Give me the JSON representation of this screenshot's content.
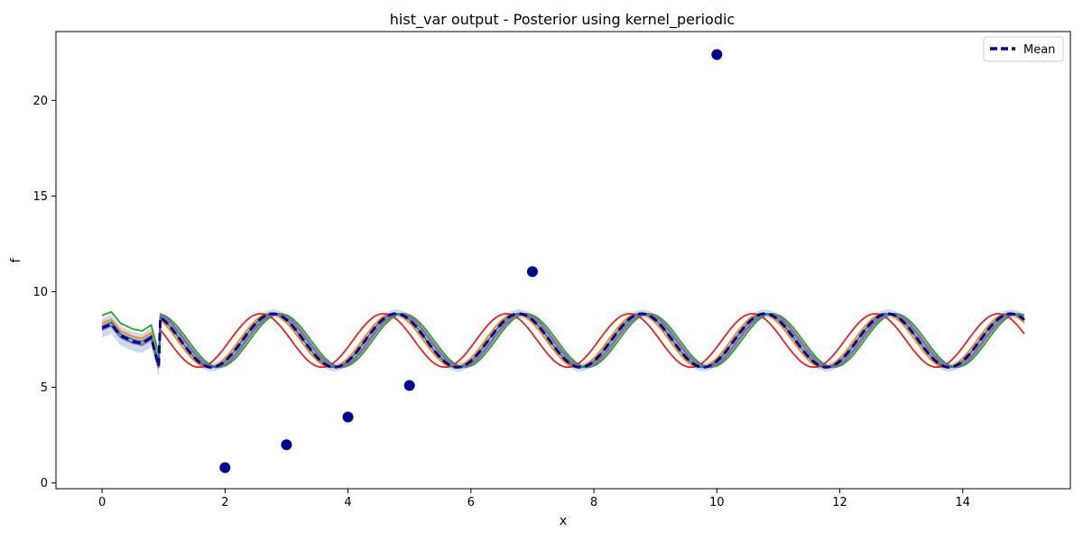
{
  "chart_data": {
    "type": "line",
    "title": "hist_var output - Posterior using kernel_periodic",
    "xlabel": "x",
    "ylabel": "f",
    "xlim": [
      -0.75,
      15.75
    ],
    "ylim": [
      -0.3,
      23.6
    ],
    "xticks": [
      0,
      2,
      4,
      6,
      8,
      10,
      12,
      14
    ],
    "yticks": [
      0,
      5,
      10,
      15,
      20
    ],
    "grid": false,
    "legend": {
      "placement": "top-right",
      "entries": [
        "Mean"
      ]
    },
    "mean": {
      "name": "Mean",
      "color": "#00008b",
      "style": "dashed",
      "base": 7.45,
      "amplitude": 1.4,
      "period": 2,
      "phase": 6.28,
      "x_start": 0.95,
      "x_end": 15.0,
      "prefix": [
        [
          0.0,
          8.1
        ],
        [
          0.15,
          8.3
        ],
        [
          0.3,
          7.7
        ],
        [
          0.5,
          7.4
        ],
        [
          0.65,
          7.3
        ],
        [
          0.8,
          7.6
        ],
        [
          0.92,
          6.1
        ]
      ]
    },
    "band": {
      "color": "#b8cce4",
      "half_width": 0.22,
      "prefix_half_width": 0.5
    },
    "samples": [
      {
        "color": "#ff7f0e",
        "shift": -0.05,
        "prefix_offset": 0.25
      },
      {
        "color": "#2ca02c",
        "shift": 0.12,
        "prefix_offset": 0.65
      },
      {
        "color": "#d62728",
        "shift": -0.2,
        "prefix_offset": -0.05
      },
      {
        "color": "#9467bd",
        "shift": 0.08,
        "prefix_offset": -0.1
      },
      {
        "color": "#7f7f7f",
        "shift": 0.05,
        "prefix_offset": -0.05
      },
      {
        "color": "#1f77b4",
        "shift": 0.0,
        "prefix_offset": 0.1
      }
    ],
    "observations": {
      "color": "#00008b",
      "x": [
        2,
        3,
        4,
        5,
        7,
        10
      ],
      "y": [
        0.8,
        2.0,
        3.45,
        5.1,
        11.05,
        22.4
      ]
    }
  }
}
